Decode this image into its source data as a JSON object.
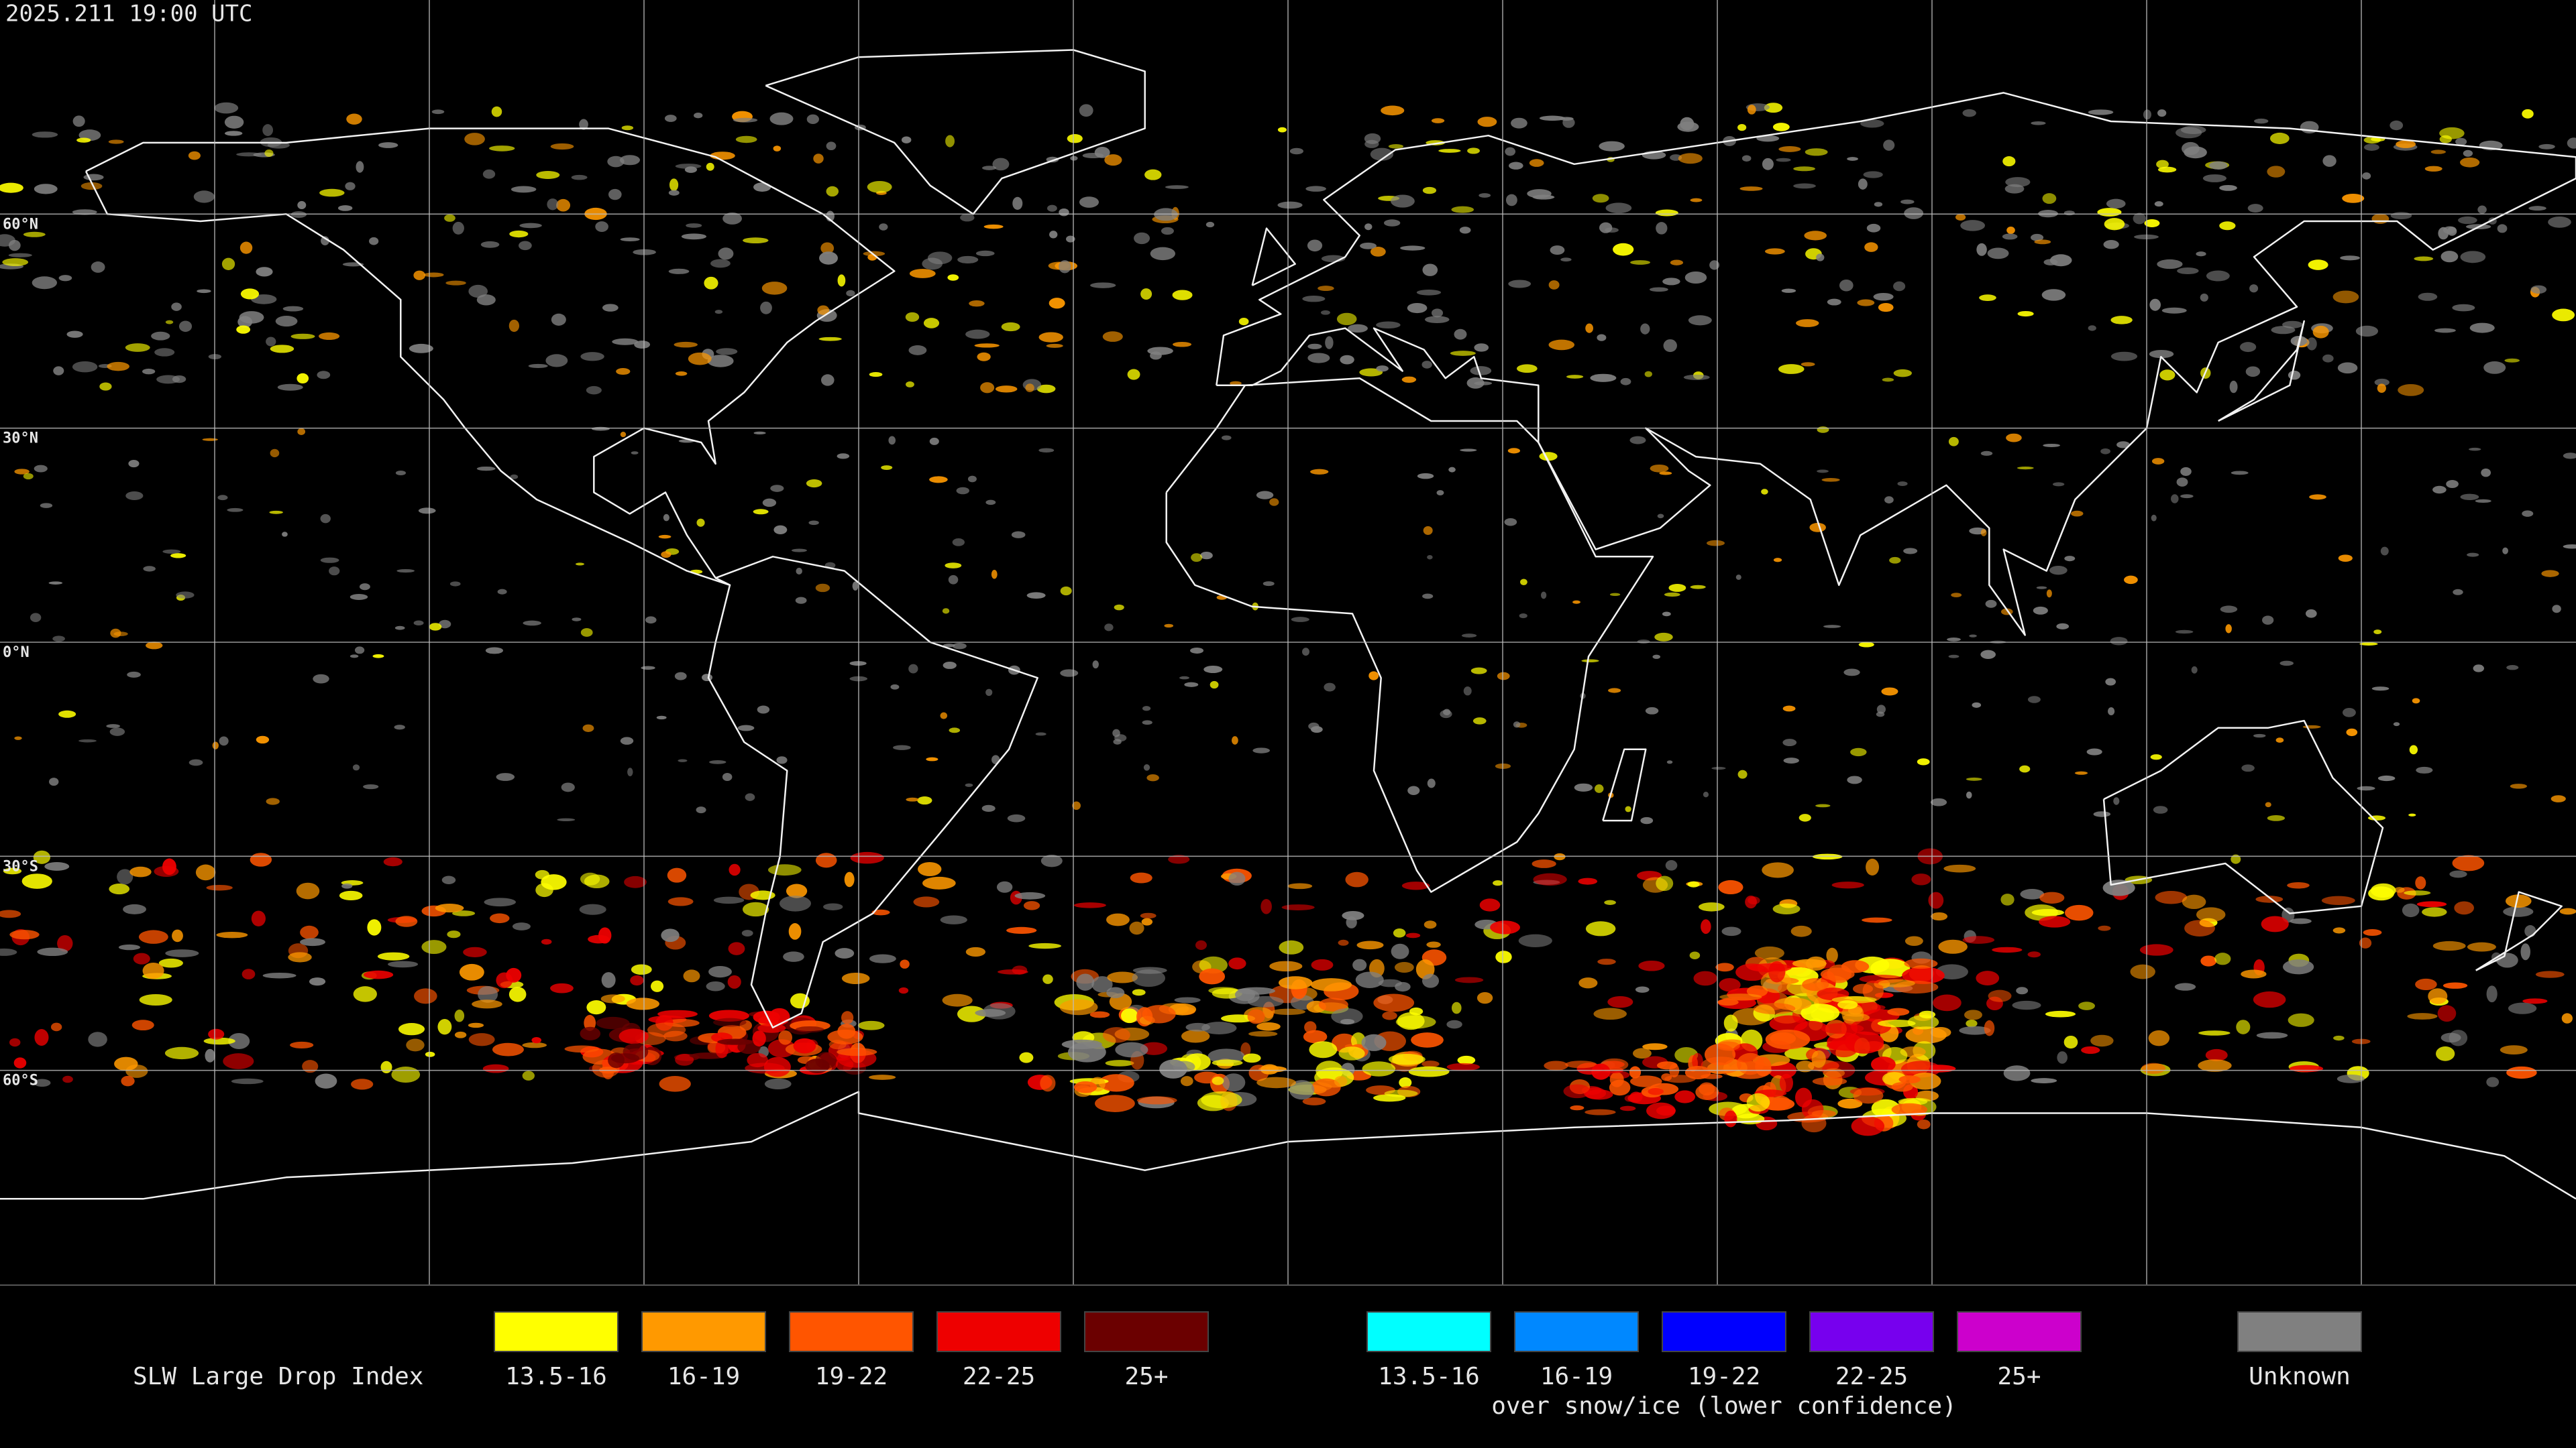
{
  "title": "2025.211 19:00 UTC",
  "lat_labels": [
    "60°N",
    "30°N",
    "0°N",
    "30°S",
    "60°S"
  ],
  "legend": {
    "title": "SLW Large Drop Index",
    "groups": [
      {
        "items": [
          {
            "label": "13.5-16",
            "color": "#ffff00"
          },
          {
            "label": "16-19",
            "color": "#ff9900"
          },
          {
            "label": "19-22",
            "color": "#ff5500"
          },
          {
            "label": "22-25",
            "color": "#ee0000"
          },
          {
            "label": "25+",
            "color": "#6b0000"
          }
        ]
      },
      {
        "items": [
          {
            "label": "13.5-16",
            "color": "#00ffff"
          },
          {
            "label": "16-19",
            "color": "#0088ff"
          },
          {
            "label": "19-22",
            "color": "#0000ff"
          },
          {
            "label": "22-25",
            "color": "#7700ee"
          },
          {
            "label": "25+",
            "color": "#cc00cc"
          }
        ],
        "note": "over snow/ice (lower confidence)"
      },
      {
        "items": [
          {
            "label": "Unknown",
            "color": "#808080"
          }
        ]
      }
    ]
  }
}
